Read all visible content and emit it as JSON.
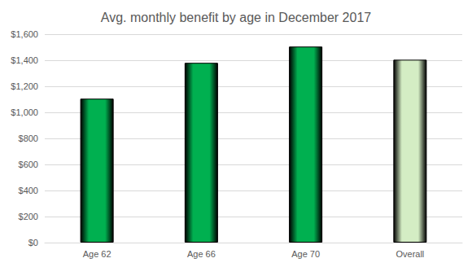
{
  "chart_data": {
    "type": "bar",
    "title": "Avg. monthly benefit by age in December 2017",
    "categories": [
      "Age 62",
      "Age 66",
      "Age 70",
      "Overall"
    ],
    "values": [
      1105,
      1380,
      1505,
      1404
    ],
    "colors": [
      "#00b050",
      "#00b050",
      "#00b050",
      "#d4edc4"
    ],
    "ylim": [
      0,
      1600
    ],
    "yticks": [
      {
        "value": 0,
        "label": "$0"
      },
      {
        "value": 200,
        "label": "$200"
      },
      {
        "value": 400,
        "label": "$400"
      },
      {
        "value": 600,
        "label": "$600"
      },
      {
        "value": 800,
        "label": "$800"
      },
      {
        "value": 1000,
        "label": "$1,000"
      },
      {
        "value": 1200,
        "label": "$1,200"
      },
      {
        "value": 1400,
        "label": "$1,400"
      },
      {
        "value": 1600,
        "label": "$1,600"
      }
    ],
    "grid": true
  }
}
